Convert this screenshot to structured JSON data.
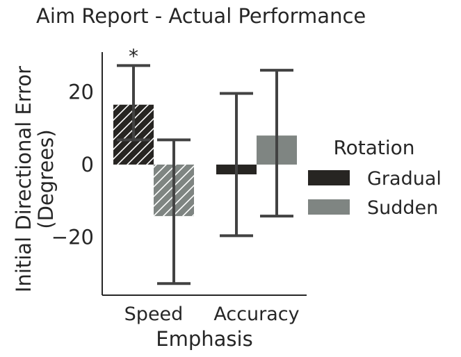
{
  "chart_data": {
    "type": "bar",
    "title": "Aim Report - Actual Performance",
    "xlabel": "Emphasis",
    "ylabel_lines": [
      "Initial Directional Error",
      "(Degrees)"
    ],
    "categories": [
      "Speed",
      "Accuracy"
    ],
    "ylim": [
      -36,
      31
    ],
    "yticks": [
      20,
      0,
      -20
    ],
    "ytick_labels": [
      "20",
      "0",
      "−20"
    ],
    "grid": false,
    "legend": {
      "title": "Rotation",
      "placement": "right"
    },
    "series": [
      {
        "name": "Gradual",
        "color": "#272522",
        "hatch": [
          true,
          false
        ],
        "values": [
          16.5,
          -2.7
        ],
        "ci_low": [
          6.8,
          -19.6
        ],
        "ci_high": [
          27.3,
          19.6
        ]
      },
      {
        "name": "Sudden",
        "color": "#7f8582",
        "hatch": [
          true,
          false
        ],
        "values": [
          -14.2,
          8.0
        ],
        "ci_low": [
          -32.8,
          -14.2
        ],
        "ci_high": [
          6.8,
          26.0
        ]
      }
    ],
    "annotations": [
      {
        "text": "*",
        "category": "Speed",
        "series": "Gradual"
      }
    ]
  }
}
